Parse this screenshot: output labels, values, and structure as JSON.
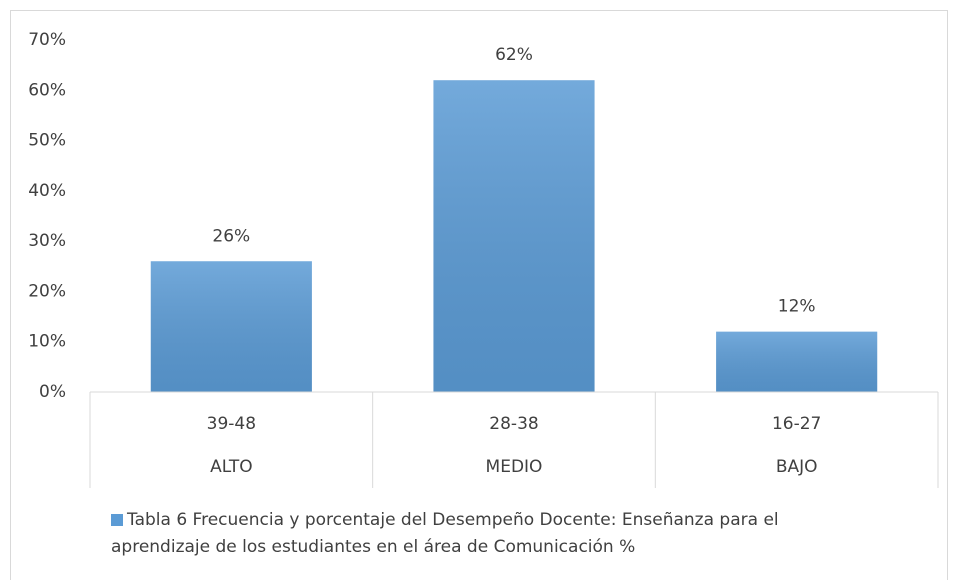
{
  "chart_data": {
    "type": "bar",
    "categories": [
      "39-48",
      "28-38",
      "16-27"
    ],
    "category_groups": [
      "ALTO",
      "MEDIO",
      "BAJO"
    ],
    "series": [
      {
        "name": "Tabla 6 Frecuencia y porcentaje del Desempeño Docente: Enseñanza para el aprendizaje de los estudiantes en el área de Comunicación  %",
        "color": "#5b9bd5",
        "values": [
          26,
          62,
          12
        ],
        "value_labels": [
          "26%",
          "62%",
          "12%"
        ]
      }
    ],
    "ylim": [
      0,
      70
    ],
    "yticks": [
      {
        "value": 0,
        "label": "0%"
      },
      {
        "value": 10,
        "label": "10%"
      },
      {
        "value": 20,
        "label": "20%"
      },
      {
        "value": 30,
        "label": "30%"
      },
      {
        "value": 40,
        "label": "40%"
      },
      {
        "value": 50,
        "label": "50%"
      },
      {
        "value": 60,
        "label": "60%"
      },
      {
        "value": 70,
        "label": "70%"
      }
    ],
    "grid": false,
    "legend": "bottom"
  }
}
